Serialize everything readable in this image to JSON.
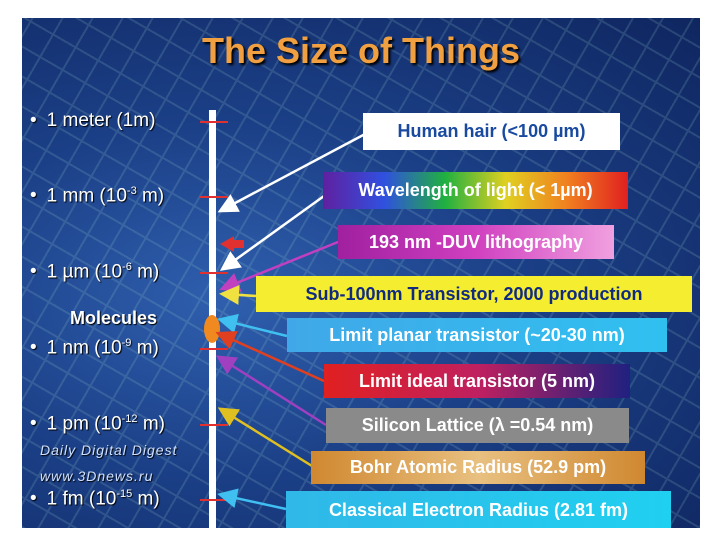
{
  "title": "The Size of Things",
  "scale": {
    "items": [
      {
        "pre": "1 meter (1m)"
      },
      {
        "pre": "1 mm (10",
        "exp": "-3",
        "post": " m)"
      },
      {
        "pre": "1 µm  (10",
        "exp": "-6",
        "post": " m)"
      },
      {
        "pre": "1 nm  (10",
        "exp": "-9",
        "post": " m)"
      },
      {
        "pre": "1 pm (10",
        "exp": "-12",
        "post": " m)"
      },
      {
        "pre": "1 fm (10",
        "exp": "-15",
        "post": " m)"
      }
    ],
    "marker": "Molecules"
  },
  "labels": [
    "Human hair (<100 µm)",
    "Wavelength of light (< 1µm)",
    "193 nm -DUV lithography",
    "Sub-100nm Transistor, 2000 production",
    "Limit planar transistor (~20-30 nm)",
    "Limit ideal transistor (5 nm)",
    "Silicon Lattice (λ =0.54 nm)",
    "Bohr Atomic Radius (52.9 pm)",
    "Classical Electron Radius (2.81 fm)"
  ],
  "watermark": {
    "line1": "Daily Digital Digest",
    "line2": "www.3Dnews.ru"
  }
}
